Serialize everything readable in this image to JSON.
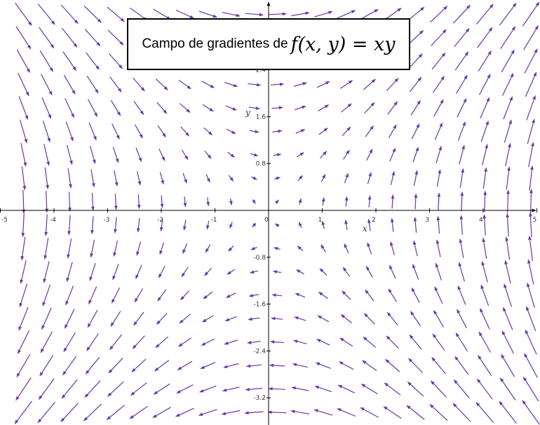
{
  "chart_data": {
    "type": "vector-field",
    "title": "Campo de gradientes de",
    "title_formula": "f(x, y) = xy",
    "function": "f(x,y) = xy",
    "field": "grad f = (y, x)",
    "xlabel": "x",
    "ylabel": "y",
    "xlim": [
      -5,
      5
    ],
    "ylim": [
      -3.9,
      3.6
    ],
    "x_ticks": [
      {
        "value": -5,
        "label": "-5"
      },
      {
        "value": -4,
        "label": "-4"
      },
      {
        "value": -3,
        "label": "-3"
      },
      {
        "value": -2,
        "label": "-2"
      },
      {
        "value": -1,
        "label": "-1"
      },
      {
        "value": 0,
        "label": "0"
      },
      {
        "value": 1,
        "label": "1"
      },
      {
        "value": 2,
        "label": "2"
      },
      {
        "value": 3,
        "label": "3"
      },
      {
        "value": 4,
        "label": "4"
      },
      {
        "value": 5,
        "label": "5"
      }
    ],
    "y_ticks": [
      {
        "value": 2.4,
        "label": "2.4"
      },
      {
        "value": 1.6,
        "label": "1.6"
      },
      {
        "value": 0.8,
        "label": "0.8"
      },
      {
        "value": -0.8,
        "label": "-0.8"
      },
      {
        "value": -1.6,
        "label": "-1.6"
      },
      {
        "value": -2.4,
        "label": "-2.4"
      },
      {
        "value": -3.2,
        "label": "-3.2"
      }
    ],
    "arrow_grid": {
      "x_step": 0.43,
      "y_step": 0.4
    },
    "grid": false,
    "colors": {
      "arrows": "#6a35a8",
      "axes": "#000000"
    }
  }
}
